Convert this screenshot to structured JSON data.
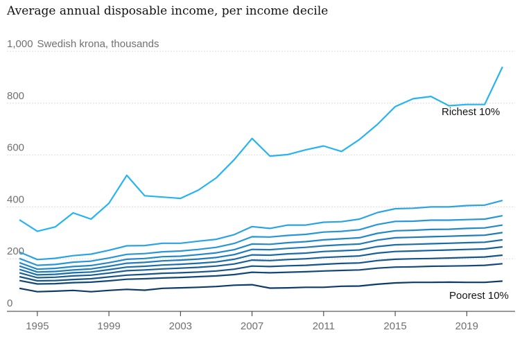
{
  "chart_data": {
    "type": "line",
    "title": "Average annual disposable income, per income decile",
    "ylabel": "Swedish krona, thousands",
    "xlabel": "",
    "ylim": [
      0,
      1000
    ],
    "y_ticks": [
      {
        "value": 0,
        "label": "0"
      },
      {
        "value": 200,
        "label": "200"
      },
      {
        "value": 400,
        "label": "400"
      },
      {
        "value": 600,
        "label": "600"
      },
      {
        "value": 800,
        "label": "800"
      },
      {
        "value": 1000,
        "label": "1,000"
      }
    ],
    "x_range": [
      1993.3,
      2021.7
    ],
    "x_ticks": [
      1995,
      1999,
      2003,
      2007,
      2011,
      2015,
      2019
    ],
    "grid": true,
    "x": [
      1994,
      1995,
      1996,
      1997,
      1998,
      1999,
      2000,
      2001,
      2002,
      2003,
      2004,
      2005,
      2006,
      2007,
      2008,
      2009,
      2010,
      2011,
      2012,
      2013,
      2014,
      2015,
      2016,
      2017,
      2018,
      2019,
      2020,
      2021
    ],
    "series": [
      {
        "name": "Richest 10%",
        "color": "#26b3f2",
        "values": [
          350,
          306,
          323,
          377,
          353,
          414,
          522,
          443,
          438,
          433,
          465,
          512,
          582,
          664,
          596,
          602,
          620,
          635,
          614,
          660,
          718,
          787,
          817,
          826,
          790,
          795,
          795,
          940
        ]
      },
      {
        "name": "",
        "color": "#2aa3e4",
        "values": [
          226,
          197,
          202,
          212,
          218,
          233,
          250,
          251,
          260,
          260,
          268,
          275,
          293,
          324,
          317,
          330,
          330,
          341,
          343,
          353,
          378,
          393,
          395,
          400,
          400,
          405,
          407,
          425
        ]
      },
      {
        "name": "",
        "color": "#2696d6",
        "values": [
          201,
          175,
          178,
          187,
          191,
          203,
          217,
          220,
          227,
          230,
          236,
          244,
          259,
          285,
          284,
          290,
          294,
          303,
          306,
          312,
          332,
          344,
          345,
          349,
          349,
          351,
          353,
          366
        ]
      },
      {
        "name": "",
        "color": "#2388c8",
        "values": [
          185,
          160,
          163,
          170,
          174,
          185,
          198,
          201,
          208,
          210,
          216,
          223,
          235,
          257,
          256,
          262,
          266,
          273,
          277,
          281,
          298,
          308,
          310,
          313,
          314,
          317,
          319,
          330
        ]
      },
      {
        "name": "",
        "color": "#1f7ab8",
        "values": [
          172,
          149,
          151,
          157,
          161,
          171,
          183,
          186,
          192,
          195,
          199,
          205,
          216,
          236,
          235,
          240,
          244,
          250,
          254,
          257,
          272,
          281,
          283,
          285,
          287,
          289,
          291,
          301
        ]
      },
      {
        "name": "",
        "color": "#1b6ca8",
        "values": [
          159,
          138,
          140,
          146,
          149,
          158,
          168,
          171,
          176,
          179,
          183,
          188,
          198,
          215,
          214,
          219,
          222,
          228,
          231,
          234,
          247,
          254,
          256,
          258,
          260,
          262,
          264,
          273
        ]
      },
      {
        "name": "",
        "color": "#185f98",
        "values": [
          146,
          127,
          129,
          134,
          137,
          145,
          154,
          157,
          161,
          164,
          167,
          172,
          180,
          195,
          193,
          197,
          200,
          205,
          208,
          211,
          222,
          228,
          230,
          232,
          234,
          236,
          238,
          246
        ]
      },
      {
        "name": "",
        "color": "#155388",
        "values": [
          131,
          115,
          116,
          120,
          123,
          130,
          137,
          140,
          144,
          146,
          149,
          153,
          160,
          172,
          170,
          173,
          175,
          179,
          182,
          184,
          193,
          198,
          200,
          201,
          203,
          205,
          207,
          214
        ]
      },
      {
        "name": "",
        "color": "#124878",
        "values": [
          116,
          103,
          104,
          108,
          110,
          115,
          121,
          123,
          126,
          128,
          131,
          134,
          139,
          148,
          146,
          148,
          150,
          153,
          155,
          157,
          164,
          168,
          169,
          171,
          172,
          173,
          175,
          181
        ]
      },
      {
        "name": "Poorest 10%",
        "color": "#0d3a66",
        "values": [
          86,
          73,
          75,
          78,
          73,
          78,
          82,
          79,
          86,
          88,
          90,
          93,
          98,
          100,
          87,
          88,
          90,
          90,
          94,
          95,
          102,
          107,
          109,
          109,
          110,
          109,
          109,
          114
        ]
      }
    ]
  }
}
